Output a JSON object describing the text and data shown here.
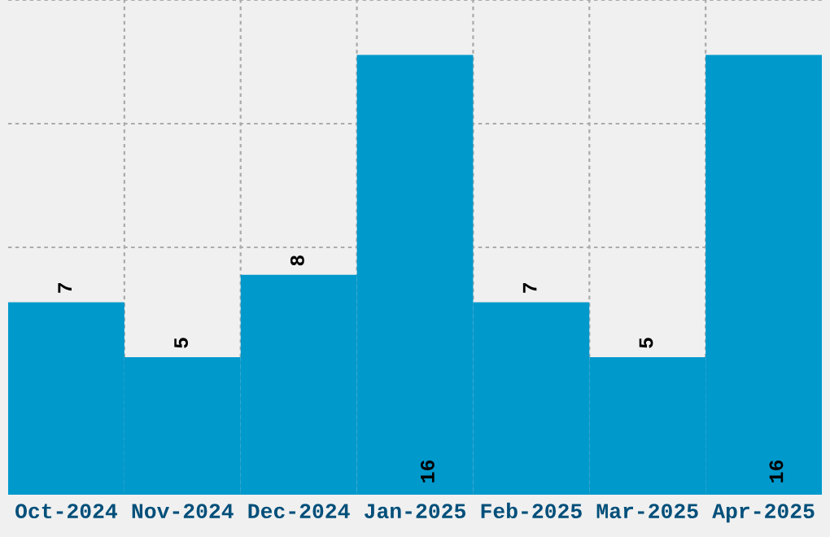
{
  "chart_data": {
    "type": "bar",
    "categories": [
      "Oct-2024",
      "Nov-2024",
      "Dec-2024",
      "Jan-2025",
      "Feb-2025",
      "Mar-2025",
      "Apr-2025"
    ],
    "values": [
      7,
      5,
      8,
      16,
      7,
      5,
      16
    ],
    "color": "#0099cc",
    "data_labels": true,
    "grid": true,
    "tick_labels": "x",
    "ylim": [
      0,
      18
    ]
  }
}
